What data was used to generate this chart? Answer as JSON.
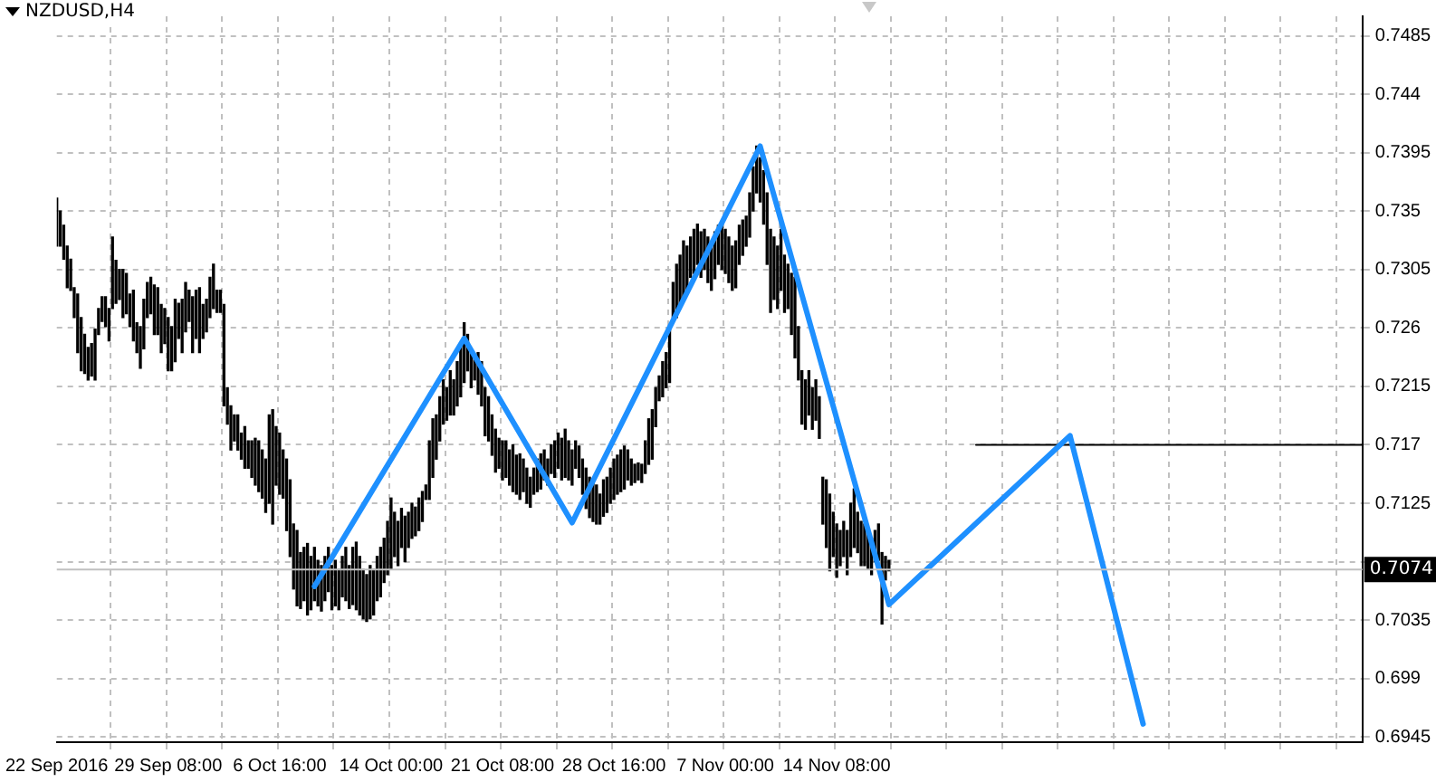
{
  "chart_data": {
    "type": "bar",
    "title": "NZDUSD,H4",
    "categories": [
      "22 Sep 2016",
      null,
      null,
      null,
      null,
      null,
      null,
      null,
      null,
      null,
      null,
      null,
      null,
      null,
      null,
      null,
      null,
      null,
      null,
      null,
      null,
      null,
      null,
      null,
      null,
      null,
      null,
      null,
      null,
      null,
      null,
      null,
      "29 Sep 08:00",
      null,
      null,
      null,
      null,
      null,
      null,
      null,
      null,
      null,
      null,
      null,
      null,
      null,
      null,
      null,
      null,
      null,
      null,
      null,
      null,
      null,
      null,
      null,
      null,
      null,
      null,
      null,
      null,
      null,
      null,
      null,
      "6 Oct 16:00",
      null,
      null,
      null,
      null,
      null,
      null,
      null,
      null,
      null,
      null,
      null,
      null,
      null,
      null,
      null,
      null,
      null,
      null,
      null,
      null,
      null,
      null,
      null,
      null,
      null,
      null,
      null,
      null,
      null,
      null,
      null,
      "14 Oct 00:00",
      null,
      null,
      null,
      null,
      null,
      null,
      null,
      null,
      null,
      null,
      null,
      null,
      null,
      null,
      null,
      null,
      null,
      null,
      null,
      null,
      null,
      null,
      null,
      null,
      null,
      null,
      null,
      null,
      null,
      null,
      null,
      "21 Oct 08:00",
      null,
      null,
      null,
      null,
      null,
      null,
      null,
      null,
      null,
      null,
      null,
      null,
      null,
      null,
      null,
      null,
      null,
      null,
      null,
      null,
      null,
      null,
      null,
      null,
      null,
      null,
      null,
      null,
      null,
      null,
      null,
      "28 Oct 16:00",
      null,
      null,
      null,
      null,
      null,
      null,
      null,
      null,
      null,
      null,
      null,
      null,
      null,
      null,
      null,
      null,
      null,
      null,
      null,
      null,
      null,
      null,
      null,
      null,
      null,
      null,
      null,
      null,
      null,
      null,
      null,
      "7 Nov 00:00",
      null,
      null,
      null,
      null,
      null,
      null,
      null,
      null,
      null,
      null,
      null,
      null,
      null,
      null,
      null,
      null,
      null,
      null,
      null,
      null,
      null,
      null,
      null,
      null,
      null,
      null,
      null,
      null,
      null,
      null,
      null,
      "14 Nov 08:00",
      null,
      null,
      null,
      null,
      null,
      null,
      null,
      null,
      null,
      null,
      null,
      null,
      null,
      null,
      null,
      null,
      null,
      null,
      null,
      null,
      null,
      null,
      null,
      null,
      null,
      null,
      null,
      null,
      null,
      null,
      null,
      null,
      null,
      null,
      null,
      null,
      null,
      null,
      null,
      null,
      null,
      null,
      null,
      null,
      null,
      null,
      null,
      null,
      null,
      null,
      null,
      null,
      null,
      null,
      null,
      null,
      null,
      null,
      null,
      null,
      null,
      null,
      null,
      null,
      null,
      null,
      null,
      null,
      null,
      null,
      null,
      null,
      null,
      null,
      null,
      null,
      null,
      null,
      null,
      null,
      null,
      null,
      null,
      null,
      null,
      null,
      null,
      null,
      null,
      null,
      null,
      null,
      null,
      null,
      null,
      null,
      null,
      null,
      null,
      null,
      null,
      null,
      null,
      null,
      null,
      null,
      null,
      null,
      null,
      null,
      null,
      null,
      null,
      null,
      null,
      null,
      null,
      null,
      null,
      null,
      null,
      null,
      null,
      null,
      null,
      null,
      null,
      null,
      null,
      null,
      null,
      null,
      null,
      null,
      null,
      null,
      null,
      null,
      null,
      null,
      null,
      null,
      null,
      null,
      null,
      null,
      null,
      null,
      null,
      null,
      null
    ],
    "series": [
      {
        "color": "#000000",
        "values": [
          0.0037,
          0.0027,
          0.0026,
          0.0032,
          0.0024,
          0.0023,
          0.0045,
          0.0041,
          0.003,
          0.0025,
          0.0025,
          0.0039,
          0.002,
          0.0019,
          0.0023,
          0.0025,
          0.0055,
          0.0033,
          0.0023,
          0.0037,
          0.0031,
          0.0025,
          0.0039,
          0.0023,
          0.0032,
          0.0038,
          0.0027,
          0.0028,
          0.0038,
          0.0036,
          0.0037,
          0.0027,
          0.0041,
          0.0034,
          0.0048,
          0.0027,
          0.0041,
          0.0038,
          0.0024,
          0.0043,
          0.0037,
          0.005,
          0.0026,
          0.0025,
          0.0031,
          0.0034,
          0.0017,
          0.0017,
          0.0078,
          0.0028,
          0.0034,
          0.002,
          0.0027,
          0.002,
          0.0032,
          0.0021,
          0.0028,
          0.0036,
          0.0039,
          0.0037,
          0.0041,
          0.0068,
          0.0088,
          0.0045,
          0.0047,
          0.0037,
          0.0055,
          0.0059,
          0.005,
          0.0058,
          0.0043,
          0.0041,
          0.0055,
          0.0041,
          0.0041,
          0.0035,
          0.0035,
          0.0034,
          0.0034,
          0.0034,
          0.0035,
          0.0031,
          0.0031,
          0.0041,
          0.0033,
          0.0044,
          0.0052,
          0.0045,
          0.0038,
          0.0036,
          0.0041,
          0.0035,
          0.0034,
          0.0038,
          0.0034,
          0.0041,
          0.0055,
          0.0034,
          0.0034,
          0.003,
          0.0035,
          0.0027,
          0.0027,
          0.0022,
          0.0025,
          0.0023,
          0.0011,
          0.0045,
          0.0045,
          0.0034,
          0.0034,
          0.0034,
          0.0025,
          0.0034,
          0.0027,
          0.0034,
          0.0041,
          0.0046,
          0.0028,
          0.003,
          0.0018,
          0.0032,
          0.0034,
          0.0037,
          0.0034,
          0.0031,
          0.0033,
          0.0023,
          0.003,
          0.0028,
          0.0027,
          0.0036,
          0.003,
          0.0035,
          0.0025,
          0.0027,
          0.0023,
          0.002,
          0.0025,
          0.0027,
          0.0023,
          0.002,
          0.0022,
          0.0028,
          0.0027,
          0.0032,
          0.0037,
          0.003,
          0.0027,
          0.0021,
          0.0024,
          0.0027,
          0.0031,
          0.0031,
          0.0032,
          0.003,
          0.0023,
          0.0028,
          0.0027,
          0.0027,
          0.0031,
          0.003,
          0.0032,
          0.0033,
          0.0023,
          0.002,
          0.0014,
          0.0013,
          0.0014,
          0.0025,
          0.0035,
          0.0038,
          0.003,
          0.0019,
          0.0027,
          0.0027,
          0.0041,
          0.0027,
          0.0041,
          0.0041,
          0.0045,
          0.0034,
          0.0031,
          0.0034,
          0.0031,
          0.0035,
          0.0031,
          0.0035,
          0.0034,
          0.0036,
          0.003,
          0.0035,
          0.0034,
          0.0035,
          0.0034,
          0.0036,
          0.003,
          0.0027,
          0.0023,
          0.0034,
          0.0034,
          0.0036,
          0.0034,
          0.0041,
          0.0055,
          0.0064,
          0.0048,
          0.0048,
          0.0047,
          0.0044,
          0.0034,
          0.0047,
          0.0062,
          0.0041,
          0.0041,
          0.0038,
          0.0034,
          0.0032,
          0.0031,
          0.0032,
          0.0036,
          0.0052,
          0.0059,
          0.0034,
          0.0041,
          0.0027,
          0.0027,
          0.0034,
          0.0041,
          0.0045,
          0.0031,
          0.0034,
          0.0032,
          0.003,
          0.0028,
          0.0024,
          0.0028,
          0.0055,
          0.0018,
          0.0008,
          null,
          null,
          null,
          null,
          null,
          null,
          null,
          null,
          null,
          null,
          null,
          null,
          null,
          null,
          null,
          null,
          null,
          null,
          null,
          null,
          null,
          null,
          null,
          null,
          null,
          null,
          null,
          null,
          null,
          null,
          null,
          null,
          null,
          null,
          null,
          null,
          null,
          null,
          null,
          null,
          null,
          null,
          null,
          null,
          null,
          null,
          null,
          null,
          null,
          null,
          null,
          null,
          null,
          null,
          null,
          null,
          null,
          null,
          null,
          null,
          null,
          null,
          null,
          null,
          null,
          null,
          null,
          null,
          null,
          null,
          null,
          null,
          null,
          null,
          null,
          null,
          null,
          null,
          null,
          null,
          null,
          null,
          null,
          null,
          null,
          null,
          null,
          null,
          null,
          null,
          null,
          null,
          null,
          null,
          null,
          null,
          null,
          null,
          null,
          null,
          null,
          null,
          null,
          null,
          null,
          null,
          null,
          null,
          null,
          null,
          null,
          null,
          null,
          null,
          null,
          null,
          null,
          null,
          null,
          null,
          null,
          null,
          null,
          null,
          null,
          null,
          null,
          null,
          null,
          null,
          null,
          null,
          null,
          null,
          null,
          null
        ],
        "base": [
          0.7323,
          0.7323,
          0.7313,
          0.7291,
          0.7289,
          0.7268,
          0.7241,
          0.7227,
          0.7225,
          0.722,
          0.7223,
          0.722,
          0.7255,
          0.7265,
          0.7261,
          0.725,
          0.7275,
          0.7279,
          0.7282,
          0.7268,
          0.7271,
          0.7261,
          0.725,
          0.7241,
          0.7229,
          0.7244,
          0.7268,
          0.7271,
          0.7255,
          0.7255,
          0.7241,
          0.7248,
          0.7227,
          0.7227,
          0.7234,
          0.7252,
          0.7241,
          0.7257,
          0.7265,
          0.7241,
          0.7252,
          0.7241,
          0.7252,
          0.7257,
          0.7268,
          0.7275,
          0.7272,
          0.7272,
          0.72,
          0.7186,
          0.7166,
          0.7173,
          0.7166,
          0.7159,
          0.7152,
          0.7152,
          0.7145,
          0.7139,
          0.7134,
          0.7129,
          0.7118,
          0.7125,
          0.7109,
          0.7139,
          0.7132,
          0.7129,
          0.7104,
          0.7084,
          0.7059,
          0.7046,
          0.7044,
          0.705,
          0.7039,
          0.7043,
          0.705,
          0.7046,
          0.7042,
          0.705,
          0.7057,
          0.7043,
          0.7046,
          0.7043,
          0.7053,
          0.705,
          0.7044,
          0.7047,
          0.7043,
          0.7039,
          0.7036,
          0.7034,
          0.7036,
          0.7039,
          0.705,
          0.7053,
          0.7064,
          0.707,
          0.7074,
          0.7084,
          0.7077,
          0.7091,
          0.708,
          0.7091,
          0.7098,
          0.71,
          0.7104,
          0.7111,
          0.7128,
          0.7128,
          0.7145,
          0.7159,
          0.7173,
          0.7186,
          0.7189,
          0.7193,
          0.7193,
          0.72,
          0.7207,
          0.7218,
          0.7227,
          0.7214,
          0.722,
          0.7209,
          0.72,
          0.7177,
          0.7173,
          0.7162,
          0.7149,
          0.7152,
          0.7143,
          0.7145,
          0.7139,
          0.7134,
          0.7132,
          0.7128,
          0.7134,
          0.7125,
          0.7122,
          0.7132,
          0.7134,
          0.7136,
          0.7143,
          0.7139,
          0.7148,
          0.7145,
          0.7152,
          0.7143,
          0.7145,
          0.7143,
          0.7139,
          0.7152,
          0.7145,
          0.7132,
          0.7121,
          0.7114,
          0.7111,
          0.7109,
          0.7109,
          0.7115,
          0.7118,
          0.7125,
          0.7128,
          0.7132,
          0.7134,
          0.7136,
          0.7143,
          0.7139,
          0.7141,
          0.7143,
          0.7141,
          0.7148,
          0.7155,
          0.7159,
          0.7184,
          0.7204,
          0.7207,
          0.7214,
          0.7218,
          0.7268,
          0.7268,
          0.7275,
          0.7282,
          0.7289,
          0.7299,
          0.7302,
          0.7309,
          0.7299,
          0.7305,
          0.7295,
          0.7289,
          0.7298,
          0.7309,
          0.7305,
          0.7302,
          0.7295,
          0.7289,
          0.7291,
          0.7309,
          0.7316,
          0.7323,
          0.733,
          0.735,
          0.7364,
          0.7357,
          0.734,
          0.7309,
          0.7272,
          0.7282,
          0.7275,
          0.7289,
          0.7272,
          0.7275,
          0.7255,
          0.7237,
          0.722,
          0.7186,
          0.7182,
          0.7193,
          0.7182,
          0.7189,
          0.7175,
          0.7109,
          0.7091,
          0.7073,
          0.7084,
          0.7068,
          0.7077,
          0.7084,
          0.707,
          0.7084,
          0.7091,
          0.7087,
          0.7077,
          0.7077,
          0.7074,
          0.707,
          0.708,
          0.7081,
          0.7032,
          0.7066,
          0.7073,
          null,
          null,
          null,
          null,
          null,
          null,
          null,
          null,
          null,
          null,
          null,
          null,
          null,
          null,
          null,
          null,
          null,
          null,
          null,
          null,
          null,
          null,
          null,
          null,
          null,
          null,
          null,
          null,
          null,
          null,
          null,
          null,
          null,
          null,
          null,
          null,
          null,
          null,
          null,
          null,
          null,
          null,
          null,
          null,
          null,
          null,
          null,
          null,
          null,
          null,
          null,
          null,
          null,
          null,
          null,
          null,
          null,
          null,
          null,
          null,
          null,
          null,
          null,
          null,
          null,
          null,
          null,
          null,
          null,
          null,
          null,
          null,
          null,
          null,
          null,
          null,
          null,
          null,
          null,
          null,
          null,
          null,
          null,
          null,
          null,
          null,
          null,
          null,
          null,
          null,
          null,
          null,
          null,
          null,
          null,
          null,
          null,
          null,
          null,
          null,
          null,
          null,
          null,
          null,
          null,
          null,
          null,
          null,
          null,
          null,
          null,
          null,
          null,
          null,
          null,
          null,
          null,
          null,
          null,
          null,
          null,
          null,
          null,
          null,
          null,
          null,
          null,
          null,
          null,
          null,
          null,
          null,
          null,
          null,
          null,
          null
        ]
      },
      {
        "type": "line",
        "color": "#1e90ff",
        "values": [
          null,
          null,
          null,
          null,
          null,
          null,
          null,
          null,
          null,
          null,
          null,
          null,
          null,
          null,
          null,
          null,
          null,
          null,
          null,
          null,
          null,
          null,
          null,
          null,
          null,
          null,
          null,
          null,
          null,
          null,
          null,
          null,
          null,
          null,
          null,
          null,
          null,
          null,
          null,
          null,
          null,
          null,
          null,
          null,
          null,
          null,
          null,
          null,
          null,
          null,
          null,
          null,
          null,
          null,
          null,
          null,
          null,
          null,
          null,
          null,
          null,
          null,
          null,
          null,
          null,
          null,
          null,
          null,
          null,
          null,
          null,
          null,
          null,
          null,
          0.7061,
          null,
          null,
          null,
          null,
          null,
          null,
          null,
          null,
          null,
          null,
          null,
          null,
          null,
          null,
          null,
          null,
          null,
          null,
          null,
          null,
          null,
          null,
          null,
          null,
          null,
          null,
          null,
          null,
          null,
          null,
          null,
          null,
          null,
          null,
          null,
          null,
          null,
          null,
          null,
          null,
          null,
          null,
          0.7252,
          null,
          null,
          null,
          null,
          null,
          null,
          null,
          null,
          null,
          null,
          null,
          null,
          null,
          null,
          null,
          null,
          null,
          null,
          null,
          null,
          null,
          null,
          null,
          null,
          null,
          null,
          null,
          null,
          null,
          null,
          0.711,
          null,
          null,
          null,
          null,
          null,
          null,
          null,
          null,
          null,
          null,
          null,
          null,
          null,
          null,
          null,
          null,
          null,
          null,
          null,
          null,
          null,
          null,
          null,
          null,
          null,
          null,
          null,
          null,
          null,
          null,
          null,
          null,
          null,
          null,
          null,
          null,
          null,
          null,
          null,
          null,
          null,
          null,
          null,
          null,
          null,
          null,
          null,
          null,
          null,
          null,
          null,
          null,
          null,
          0.74,
          null,
          null,
          null,
          null,
          null,
          null,
          null,
          null,
          null,
          null,
          null,
          null,
          null,
          null,
          null,
          null,
          null,
          null,
          null,
          null,
          null,
          null,
          null,
          null,
          null,
          null,
          null,
          null,
          null,
          null,
          null,
          null,
          null,
          null,
          null,
          null,
          0.7047,
          null,
          null,
          null,
          null,
          null,
          null,
          null,
          null,
          null,
          null,
          null,
          null,
          null,
          null,
          null,
          null,
          null,
          null,
          null,
          null,
          null,
          null,
          null,
          null,
          null,
          null,
          null,
          null,
          null,
          null,
          null,
          null,
          null,
          null,
          null,
          null,
          null,
          null,
          null,
          null,
          null,
          null,
          null,
          null,
          null,
          null,
          null,
          null,
          null,
          null,
          null,
          0.7177,
          null,
          null,
          null,
          null,
          null,
          null,
          null,
          null,
          null,
          null,
          null,
          null,
          null,
          null,
          null,
          null,
          null,
          null,
          null,
          null,
          0.6955,
          null,
          null,
          null,
          null,
          null,
          null,
          null,
          null,
          null,
          null,
          null,
          null,
          null,
          null,
          null,
          null,
          null,
          null,
          null,
          null,
          null,
          null,
          null,
          null,
          null,
          null,
          null,
          null,
          null,
          null,
          null,
          null,
          null,
          null,
          null,
          null,
          null,
          null,
          null,
          null,
          null,
          null,
          null,
          null,
          null,
          null,
          null,
          null,
          null,
          null,
          null,
          null,
          null,
          null,
          null,
          null,
          null,
          null,
          null,
          null,
          null,
          null,
          null
        ]
      },
      {
        "type": "line",
        "color": "#000000",
        "values": [
          null,
          null,
          null,
          null,
          null,
          null,
          null,
          null,
          null,
          null,
          null,
          null,
          null,
          null,
          null,
          null,
          null,
          null,
          null,
          null,
          null,
          null,
          null,
          null,
          null,
          null,
          null,
          null,
          null,
          null,
          null,
          null,
          null,
          null,
          null,
          null,
          null,
          null,
          null,
          null,
          null,
          null,
          null,
          null,
          null,
          null,
          null,
          null,
          null,
          null,
          null,
          null,
          null,
          null,
          null,
          null,
          null,
          null,
          null,
          null,
          null,
          null,
          null,
          null,
          null,
          null,
          null,
          null,
          null,
          null,
          null,
          null,
          null,
          null,
          null,
          null,
          null,
          null,
          null,
          null,
          null,
          null,
          null,
          null,
          null,
          null,
          null,
          null,
          null,
          null,
          null,
          null,
          null,
          null,
          null,
          null,
          null,
          null,
          null,
          null,
          null,
          null,
          null,
          null,
          null,
          null,
          null,
          null,
          null,
          null,
          null,
          null,
          null,
          null,
          null,
          null,
          null,
          null,
          null,
          null,
          null,
          null,
          null,
          null,
          null,
          null,
          null,
          null,
          null,
          null,
          null,
          null,
          null,
          null,
          null,
          null,
          null,
          null,
          null,
          null,
          null,
          null,
          null,
          null,
          null,
          null,
          null,
          null,
          null,
          null,
          null,
          null,
          null,
          null,
          null,
          null,
          null,
          null,
          null,
          null,
          null,
          null,
          null,
          null,
          null,
          null,
          null,
          null,
          null,
          null,
          null,
          null,
          null,
          null,
          null,
          null,
          null,
          null,
          null,
          null,
          null,
          null,
          null,
          null,
          null,
          null,
          null,
          null,
          null,
          null,
          null,
          null,
          null,
          null,
          null,
          null,
          null,
          null,
          null,
          null,
          null,
          null,
          null,
          null,
          null,
          null,
          null,
          null,
          null,
          null,
          null,
          null,
          null,
          null,
          null,
          null,
          null,
          null,
          null,
          null,
          null,
          null,
          null,
          null,
          null,
          null,
          null,
          null,
          null,
          null,
          null,
          null,
          null,
          null,
          null,
          null,
          null,
          null,
          null,
          null,
          null,
          null,
          null,
          null,
          null,
          null,
          null,
          null,
          null,
          null,
          null,
          null,
          null,
          null,
          null,
          null,
          null,
          null,
          null,
          null,
          null,
          null,
          null,
          null,
          0.717,
          null,
          null,
          null,
          null,
          null,
          null,
          null,
          null,
          null,
          null,
          null,
          null,
          null,
          null,
          null,
          null,
          null,
          null,
          null,
          null,
          null,
          null,
          null,
          null,
          null,
          null,
          null,
          null,
          null,
          null,
          null,
          null,
          null,
          null,
          null,
          null,
          null,
          null,
          null,
          null,
          null,
          null,
          null,
          null,
          null,
          null,
          null,
          null,
          null,
          null,
          null,
          null,
          null,
          null,
          null,
          null,
          null,
          null,
          null,
          null,
          null,
          null,
          null,
          null,
          null,
          null,
          null,
          null,
          null,
          null,
          null,
          null,
          null,
          null,
          null,
          null,
          null,
          null,
          null,
          null,
          null,
          null,
          null,
          null,
          null,
          null,
          null,
          null,
          null,
          null,
          null,
          null,
          null,
          null,
          null,
          null,
          null,
          null,
          null,
          null,
          null,
          null,
          null,
          null,
          null,
          null,
          null,
          null,
          null,
          null,
          0.717
        ]
      }
    ],
    "ylim": [
      0.6941,
      0.75
    ],
    "yticks": [
      0.6945,
      0.699,
      0.7035,
      {
        "value": 0.708,
        "label": null
      },
      0.7125,
      0.717,
      0.7215,
      0.726,
      0.7305,
      0.735,
      0.7395,
      0.744,
      0.7485
    ],
    "ref_lines": [
      {
        "axis": "y",
        "value": 0.7074,
        "label": "0.7074",
        "color": "#c0c0c0"
      }
    ],
    "grid": true,
    "marker": "none"
  }
}
